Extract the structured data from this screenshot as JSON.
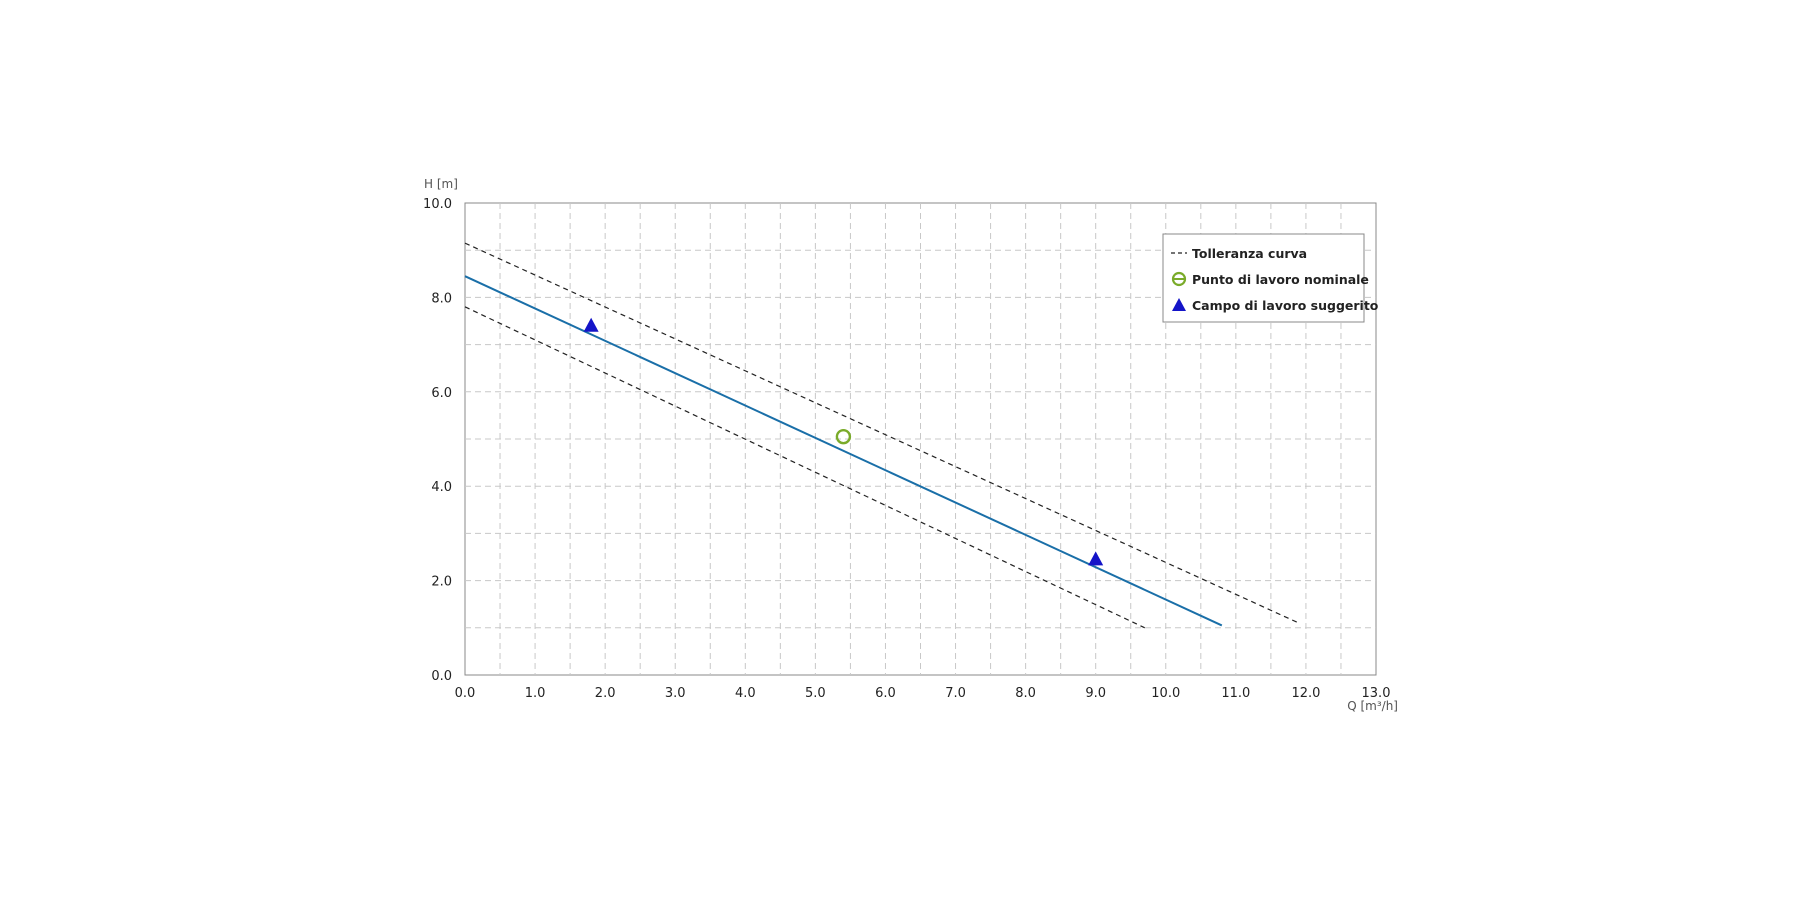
{
  "chart_data": {
    "type": "line",
    "xlabel": "Q [m³/h]",
    "ylabel": "H [m]",
    "xlim": [
      0,
      13
    ],
    "ylim": [
      0,
      10
    ],
    "x_ticks": [
      "0.0",
      "1.0",
      "2.0",
      "3.0",
      "4.0",
      "5.0",
      "6.0",
      "7.0",
      "8.0",
      "9.0",
      "10.0",
      "11.0",
      "12.0",
      "13.0"
    ],
    "y_ticks": [
      "0.0",
      "2.0",
      "4.0",
      "6.0",
      "8.0",
      "10.0"
    ],
    "grid": true,
    "legend_position": "top-right",
    "legend": {
      "tolerance": "Tolleranza curva",
      "nominal": "Punto di lavoro nominale",
      "range": "Campo di lavoro suggerito"
    },
    "colors": {
      "curve": "#1a6fa8",
      "tolerance": "#222222",
      "nominal": "#7aab2a",
      "range": "#1414c8",
      "grid": "#c8c8c8"
    },
    "series": [
      {
        "kind": "curve",
        "x": [
          0.0,
          10.8
        ],
        "y": [
          8.45,
          1.05
        ]
      },
      {
        "kind": "tolerance-upper",
        "x": [
          0.0,
          11.9
        ],
        "y": [
          9.15,
          1.1
        ]
      },
      {
        "kind": "tolerance-lower",
        "x": [
          0.0,
          9.7
        ],
        "y": [
          7.8,
          1.0
        ]
      }
    ],
    "nominal_point": {
      "x": 5.4,
      "y": 5.05
    },
    "range_points": [
      {
        "x": 1.8,
        "y": 7.4
      },
      {
        "x": 9.0,
        "y": 2.45
      }
    ]
  }
}
